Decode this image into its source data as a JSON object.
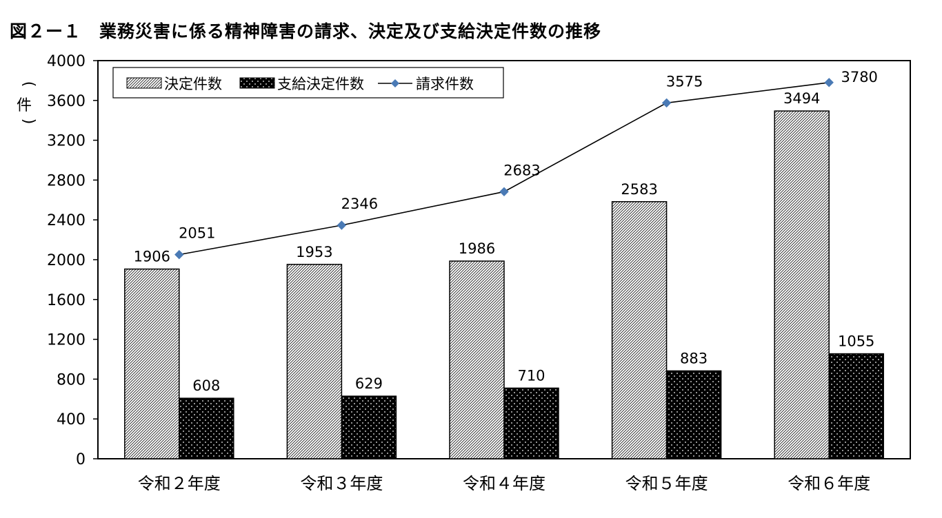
{
  "title": "図２ー１　業務災害に係る精神障害の請求、決定及び支給決定件数の推移",
  "chart_data": {
    "type": "bar",
    "ylabel": "件",
    "ylim": [
      0,
      4000
    ],
    "yticks": [
      0,
      400,
      800,
      1200,
      1600,
      2000,
      2400,
      2800,
      3200,
      3600,
      4000
    ],
    "categories": [
      "令和２年度",
      "令和３年度",
      "令和４年度",
      "令和５年度",
      "令和６年度"
    ],
    "series": [
      {
        "name": "決定件数",
        "kind": "bar",
        "pattern": "diagonal-hatch",
        "values": [
          1906,
          1953,
          1986,
          2583,
          3494
        ]
      },
      {
        "name": "支給決定件数",
        "kind": "bar",
        "pattern": "black-dotted",
        "values": [
          608,
          629,
          710,
          883,
          1055
        ]
      },
      {
        "name": "請求件数",
        "kind": "line",
        "color": "#4a7ab5",
        "values": [
          2051,
          2346,
          2683,
          3575,
          3780
        ]
      }
    ],
    "legend_position": "top-left",
    "grid": false
  }
}
